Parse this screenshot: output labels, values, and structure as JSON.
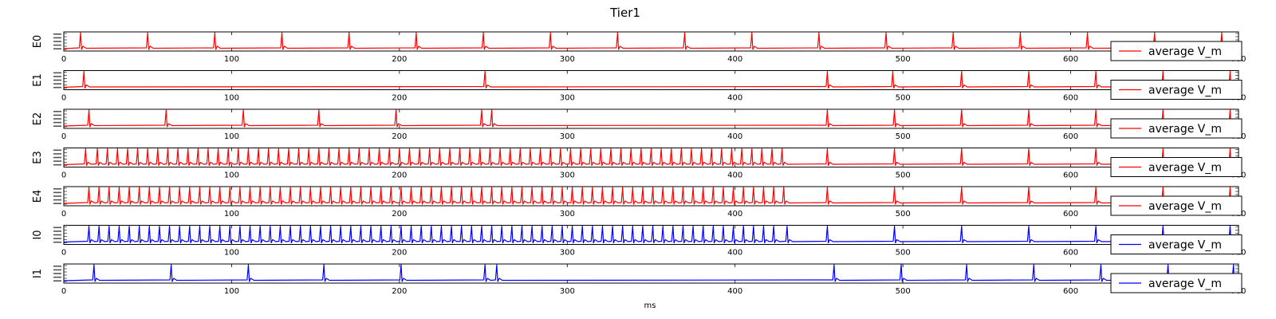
{
  "chart_data": {
    "type": "line",
    "title": "Tier1",
    "xlabel": "ms",
    "xlim": [
      0,
      700
    ],
    "x_ticks": [
      "0",
      "100",
      "200",
      "300",
      "400",
      "500",
      "600",
      "700"
    ],
    "grid": false,
    "legend_placement": "lower-right",
    "legend_label": "average V_m",
    "colors": {
      "excitatory": "#ff0000",
      "inhibitory": "#0000ff"
    },
    "panels": [
      {
        "ylabel": "E0",
        "color": "#ff0000",
        "spike_times": [
          10,
          50,
          90,
          130,
          170,
          210,
          250,
          290,
          330,
          370,
          410,
          450,
          490,
          530,
          570,
          610,
          650,
          690
        ]
      },
      {
        "ylabel": "E1",
        "color": "#ff0000",
        "spike_times": [
          12,
          251,
          455,
          494,
          535,
          575,
          615,
          655,
          695
        ]
      },
      {
        "ylabel": "E2",
        "color": "#ff0000",
        "spike_times": [
          15,
          61,
          107,
          152,
          198,
          249,
          255,
          455,
          495,
          535,
          575,
          615,
          655,
          695
        ]
      },
      {
        "ylabel": "E3",
        "color": "#ff0000",
        "spike_times": [
          13,
          20,
          26,
          32,
          38,
          44,
          50,
          56,
          62,
          68,
          74,
          80,
          86,
          92,
          98,
          104,
          110,
          116,
          122,
          128,
          134,
          140,
          146,
          152,
          158,
          164,
          170,
          176,
          182,
          188,
          194,
          200,
          206,
          212,
          218,
          224,
          230,
          236,
          242,
          248,
          254,
          260,
          266,
          272,
          278,
          284,
          290,
          296,
          302,
          308,
          314,
          320,
          326,
          332,
          338,
          344,
          350,
          356,
          362,
          368,
          374,
          380,
          386,
          392,
          398,
          404,
          410,
          416,
          422,
          428,
          455,
          495,
          535,
          575,
          615,
          655,
          695
        ]
      },
      {
        "ylabel": "E4",
        "color": "#ff0000",
        "spike_times": [
          15,
          21,
          27,
          33,
          39,
          45,
          51,
          57,
          63,
          69,
          75,
          81,
          87,
          93,
          99,
          105,
          111,
          117,
          123,
          129,
          135,
          141,
          147,
          153,
          159,
          165,
          171,
          177,
          183,
          189,
          195,
          201,
          207,
          213,
          219,
          225,
          231,
          237,
          243,
          249,
          255,
          261,
          267,
          273,
          279,
          285,
          291,
          297,
          303,
          309,
          315,
          321,
          327,
          333,
          339,
          345,
          351,
          357,
          363,
          369,
          375,
          381,
          387,
          393,
          399,
          405,
          411,
          417,
          423,
          429,
          455,
          495,
          535,
          575,
          615,
          655,
          695
        ]
      },
      {
        "ylabel": "I0",
        "color": "#0000ff",
        "spike_times": [
          15,
          21,
          27,
          33,
          39,
          45,
          51,
          57,
          63,
          69,
          75,
          81,
          87,
          93,
          99,
          105,
          111,
          117,
          123,
          129,
          135,
          141,
          147,
          153,
          159,
          165,
          171,
          177,
          183,
          189,
          195,
          201,
          207,
          213,
          219,
          225,
          231,
          237,
          243,
          249,
          255,
          261,
          267,
          273,
          279,
          285,
          291,
          297,
          303,
          309,
          315,
          321,
          327,
          333,
          339,
          345,
          351,
          357,
          363,
          369,
          375,
          381,
          387,
          393,
          399,
          405,
          411,
          417,
          423,
          431,
          455,
          495,
          535,
          575,
          615,
          655,
          695
        ]
      },
      {
        "ylabel": "I1",
        "color": "#0000ff",
        "spike_times": [
          18,
          64,
          110,
          155,
          201,
          251,
          258,
          459,
          499,
          538,
          578,
          618,
          658,
          697
        ]
      }
    ]
  }
}
